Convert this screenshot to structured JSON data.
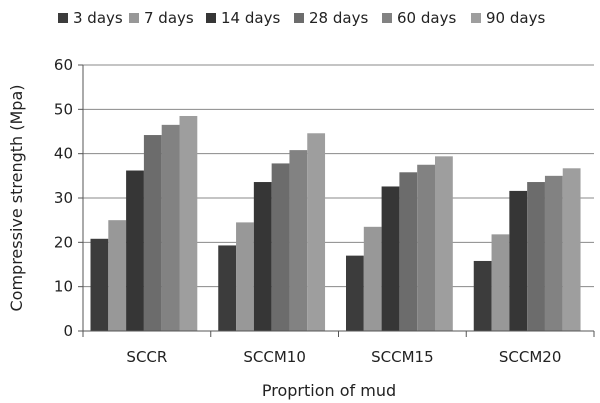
{
  "chart_data": {
    "type": "bar",
    "title": "",
    "xlabel": "Proprtion  of mud",
    "ylabel": "Compressive strength (Mpa)",
    "ylim": [
      0,
      60
    ],
    "yticks": [
      0,
      10,
      20,
      30,
      40,
      50,
      60
    ],
    "grid": "horizontal",
    "legend_position": "top",
    "categories": [
      "SCCR",
      "SCCM10",
      "SCCM15",
      "SCCM20"
    ],
    "series": [
      {
        "name": "3 days",
        "color": "#3c3c3c",
        "values": [
          20.8,
          19.3,
          17.0,
          15.8
        ]
      },
      {
        "name": "7 days",
        "color": "#989898",
        "values": [
          25.0,
          24.5,
          23.5,
          21.8
        ]
      },
      {
        "name": "14 days",
        "color": "#363636",
        "values": [
          36.2,
          33.6,
          32.6,
          31.6
        ]
      },
      {
        "name": "28 days",
        "color": "#6c6c6c",
        "values": [
          44.2,
          37.8,
          35.8,
          33.6
        ]
      },
      {
        "name": "60 days",
        "color": "#828282",
        "values": [
          46.5,
          40.8,
          37.5,
          35.0
        ]
      },
      {
        "name": "90 days",
        "color": "#9e9e9e",
        "values": [
          48.5,
          44.6,
          39.4,
          36.7
        ]
      }
    ]
  }
}
